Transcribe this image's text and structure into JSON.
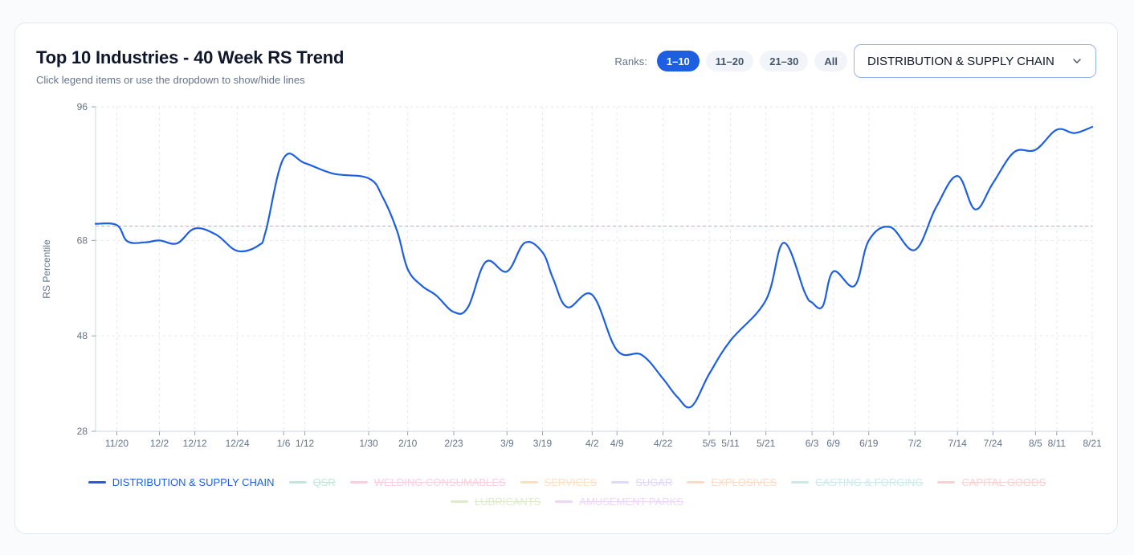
{
  "header": {
    "title": "Top 10 Industries - 40 Week RS Trend",
    "subtitle": "Click legend items or use the dropdown to show/hide lines"
  },
  "ranks": {
    "label": "Ranks:",
    "options": [
      "1–10",
      "11–20",
      "21–30",
      "All"
    ],
    "selected": "1–10"
  },
  "dropdown": {
    "selected": "DISTRIBUTION & SUPPLY CHAIN",
    "icon": "chevron-down-icon"
  },
  "colors": {
    "accent": "#1d5fe0",
    "reference_line": "#86d0b3",
    "grid": "#e5e7eb"
  },
  "chart_data": {
    "type": "line",
    "title": "Top 10 Industries - 40 Week RS Trend",
    "ylabel": "RS Percentile",
    "xlabel": "",
    "ylim": [
      28,
      96
    ],
    "yticks": [
      96,
      68,
      48,
      28
    ],
    "xtick_labels": [
      "11/20",
      "12/2",
      "12/12",
      "12/24",
      "1/6",
      "1/12",
      "1/30",
      "2/10",
      "2/23",
      "3/9",
      "3/19",
      "4/2",
      "4/9",
      "4/22",
      "5/5",
      "5/11",
      "5/21",
      "6/3",
      "6/9",
      "6/19",
      "7/2",
      "7/14",
      "7/24",
      "8/5",
      "8/11",
      "8/21"
    ],
    "reference_line": {
      "y": 71
    },
    "grid": true,
    "legend_position": "bottom",
    "series": [
      {
        "name": "DISTRIBUTION & SUPPLY CHAIN",
        "color": "#1d5fe0",
        "visible": true,
        "points": [
          [
            "11/14",
            71.5
          ],
          [
            "11/20",
            71.2
          ],
          [
            "11/23",
            67.8
          ],
          [
            "11/28",
            67.6
          ],
          [
            "12/2",
            68.0
          ],
          [
            "12/7",
            67.4
          ],
          [
            "12/12",
            70.5
          ],
          [
            "12/18",
            69.2
          ],
          [
            "12/24",
            65.8
          ],
          [
            "12/30",
            67.0
          ],
          [
            "1/1",
            70.0
          ],
          [
            "1/6",
            85.2
          ],
          [
            "1/12",
            84.2
          ],
          [
            "1/20",
            82.0
          ],
          [
            "1/30",
            81.0
          ],
          [
            "2/3",
            77.0
          ],
          [
            "2/7",
            70.0
          ],
          [
            "2/10",
            62.0
          ],
          [
            "2/14",
            58.5
          ],
          [
            "2/18",
            56.5
          ],
          [
            "2/23",
            53.0
          ],
          [
            "2/27",
            54.0
          ],
          [
            "3/3",
            63.5
          ],
          [
            "3/9",
            61.5
          ],
          [
            "3/14",
            67.5
          ],
          [
            "3/19",
            65.5
          ],
          [
            "3/22",
            60.0
          ],
          [
            "3/26",
            54.0
          ],
          [
            "4/2",
            56.6
          ],
          [
            "4/9",
            45.0
          ],
          [
            "4/16",
            44.0
          ],
          [
            "4/22",
            39.0
          ],
          [
            "4/26",
            35.2
          ],
          [
            "4/30",
            33.2
          ],
          [
            "5/5",
            40.0
          ],
          [
            "5/11",
            47.0
          ],
          [
            "5/21",
            55.5
          ],
          [
            "5/26",
            67.5
          ],
          [
            "6/1",
            57.0
          ],
          [
            "6/3",
            55.0
          ],
          [
            "6/6",
            54.2
          ],
          [
            "6/9",
            61.5
          ],
          [
            "6/15",
            58.5
          ],
          [
            "6/19",
            68.0
          ],
          [
            "6/25",
            70.8
          ],
          [
            "7/2",
            66.0
          ],
          [
            "7/8",
            75.0
          ],
          [
            "7/14",
            81.5
          ],
          [
            "7/19",
            74.5
          ],
          [
            "7/24",
            80.0
          ],
          [
            "7/30",
            86.5
          ],
          [
            "8/5",
            87.0
          ],
          [
            "8/11",
            91.2
          ],
          [
            "8/16",
            90.5
          ],
          [
            "8/21",
            91.8
          ]
        ]
      },
      {
        "name": "QSR",
        "color": "#86d0b3",
        "visible": false
      },
      {
        "name": "WELDING CONSUMABLES",
        "color": "#f2a0b9",
        "visible": false
      },
      {
        "name": "SERVICES",
        "color": "#f8c08a",
        "visible": false
      },
      {
        "name": "SUGAR",
        "color": "#c4b0f2",
        "visible": false
      },
      {
        "name": "EXPLOSIVES",
        "color": "#f6b892",
        "visible": false
      },
      {
        "name": "CASTING & FORGING",
        "color": "#99d4d6",
        "visible": false
      },
      {
        "name": "CAPITAL GOODS",
        "color": "#f0a3a3",
        "visible": false
      },
      {
        "name": "LUBRICANTS",
        "color": "#bcd89a",
        "visible": false
      },
      {
        "name": "AMUSEMENT PARKS",
        "color": "#dcaef0",
        "visible": false
      }
    ]
  }
}
